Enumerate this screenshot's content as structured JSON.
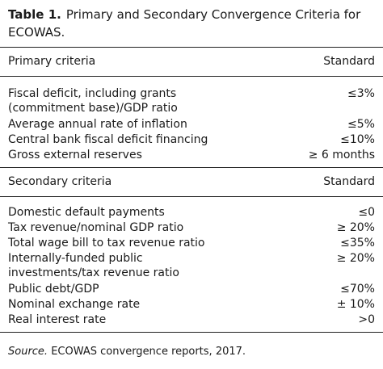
{
  "caption": {
    "label": "Table 1.",
    "title": "Primary and Secondary Convergence Criteria for ECOWAS."
  },
  "primary": {
    "header_criteria": "Primary criteria",
    "header_standard": "Standard",
    "rows": [
      {
        "criterion": "Fiscal deficit, including grants\n  (commitment base)/GDP ratio",
        "standard": "≤3%"
      },
      {
        "criterion": "Average annual rate of inflation",
        "standard": "≤5%"
      },
      {
        "criterion": "Central bank fiscal deficit financing",
        "standard": "≤10%"
      },
      {
        "criterion": "Gross external reserves",
        "standard": "≥ 6 months"
      }
    ]
  },
  "secondary": {
    "header_criteria": "Secondary criteria",
    "header_standard": "Standard",
    "rows": [
      {
        "criterion": "Domestic default payments",
        "standard": "≤0"
      },
      {
        "criterion": "Tax revenue/nominal GDP ratio",
        "standard": "≥ 20%"
      },
      {
        "criterion": "Total wage bill to tax revenue ratio",
        "standard": "≤35%"
      },
      {
        "criterion": "Internally-funded public\n  investments/tax revenue ratio",
        "standard": "≥ 20%"
      },
      {
        "criterion": "Public debt/GDP",
        "standard": "≤70%"
      },
      {
        "criterion": "Nominal exchange rate",
        "standard": "± 10%"
      },
      {
        "criterion": "Real interest rate",
        "standard": ">0"
      }
    ]
  },
  "source": {
    "label": "Source.",
    "text": "ECOWAS convergence reports, 2017."
  }
}
